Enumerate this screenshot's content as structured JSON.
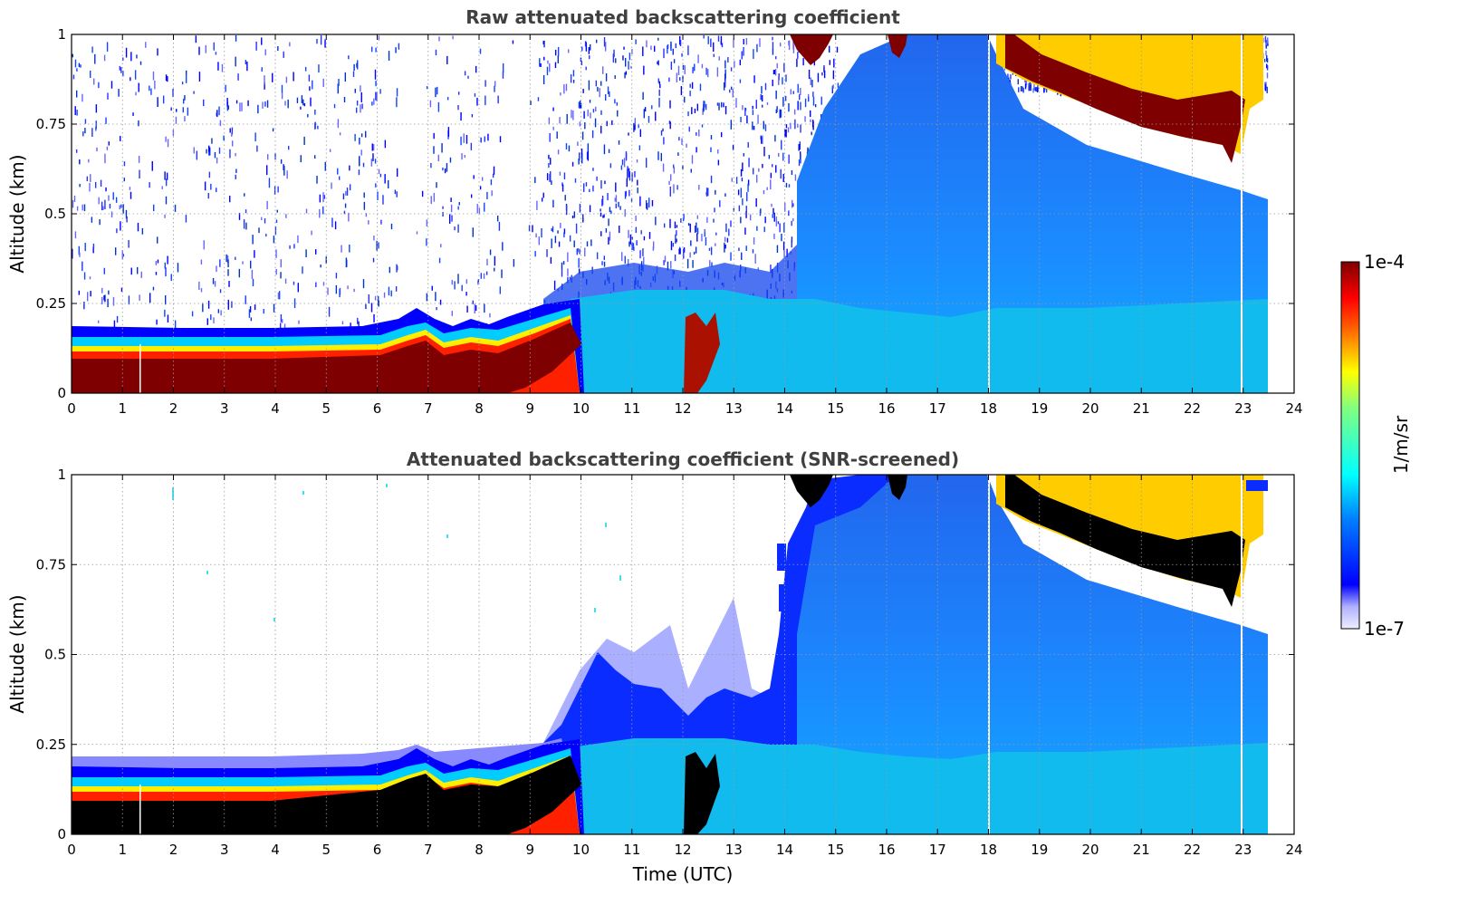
{
  "figure": {
    "colorbar": {
      "max_label": "1e-4",
      "min_label": "1e-7",
      "unit_label": "1/m/sr",
      "scale": "log",
      "colormap": "jet-with-light-low-end"
    }
  },
  "chart_data": [
    {
      "type": "heatmap",
      "title": "Raw attenuated backscattering coefficient",
      "xlabel": "",
      "ylabel": "Altitude (km)",
      "xlim": [
        0,
        24
      ],
      "ylim": [
        0,
        1
      ],
      "xticks": [
        "0",
        "1",
        "2",
        "3",
        "4",
        "5",
        "6",
        "7",
        "8",
        "9",
        "10",
        "11",
        "12",
        "13",
        "14",
        "15",
        "16",
        "17",
        "18",
        "19",
        "20",
        "21",
        "22",
        "23",
        "24"
      ],
      "yticks": [
        "0",
        "0.25",
        "0.5",
        "0.75",
        "1"
      ],
      "grid": true,
      "data_end_hour": 23.5,
      "boundary_layer_top_km": [
        [
          0,
          0.17
        ],
        [
          6.5,
          0.19
        ],
        [
          7,
          0.23
        ],
        [
          8,
          0.2
        ],
        [
          9,
          0.24
        ],
        [
          10,
          0.3
        ],
        [
          11,
          0.35
        ],
        [
          12,
          0.3
        ],
        [
          13,
          0.38
        ],
        [
          14,
          0.4
        ]
      ],
      "upper_cloud_base_km": [
        [
          18.3,
          0.95
        ],
        [
          19,
          0.88
        ],
        [
          20,
          0.8
        ],
        [
          21,
          0.74
        ],
        [
          22,
          0.7
        ],
        [
          22.8,
          0.63
        ]
      ],
      "saturated_value_color": "#7f0000"
    },
    {
      "type": "heatmap",
      "title": "Attenuated backscattering coefficient (SNR-screened)",
      "xlabel": "Time (UTC)",
      "ylabel": "Altitude (km)",
      "xlim": [
        0,
        24
      ],
      "ylim": [
        0,
        1
      ],
      "xticks": [
        "0",
        "1",
        "2",
        "3",
        "4",
        "5",
        "6",
        "7",
        "8",
        "9",
        "10",
        "11",
        "12",
        "13",
        "14",
        "15",
        "16",
        "17",
        "18",
        "19",
        "20",
        "21",
        "22",
        "23",
        "24"
      ],
      "yticks": [
        "0",
        "0.25",
        "0.5",
        "0.75",
        "1"
      ],
      "grid": true,
      "data_end_hour": 23.5,
      "saturated_value_color": "#000000"
    }
  ]
}
